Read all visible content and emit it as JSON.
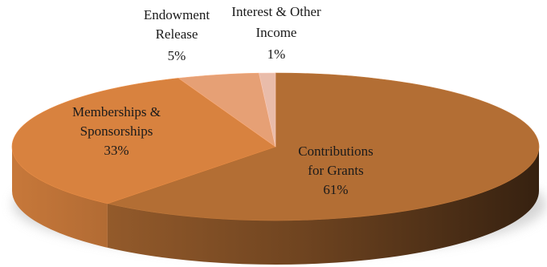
{
  "chart_data": {
    "type": "pie",
    "style": "3d",
    "start_angle_deg": 270,
    "direction": "clockwise",
    "series": [
      {
        "slices": [
          {
            "label_lines": [
              "Contributions",
              "for Grants"
            ],
            "value": 61,
            "value_label": "61%",
            "color": "#b36e34"
          },
          {
            "label_lines": [
              "Memberships &",
              "Sponsorships"
            ],
            "value": 33,
            "value_label": "33%",
            "color": "#d8823f"
          },
          {
            "label_lines": [
              "Endowment",
              "Release"
            ],
            "value": 5,
            "value_label": "5%",
            "color": "#e6a075"
          },
          {
            "label_lines": [
              "Interest & Other",
              "Income"
            ],
            "value": 1,
            "value_label": "1%",
            "color": "#e9bcaa"
          }
        ]
      }
    ]
  }
}
